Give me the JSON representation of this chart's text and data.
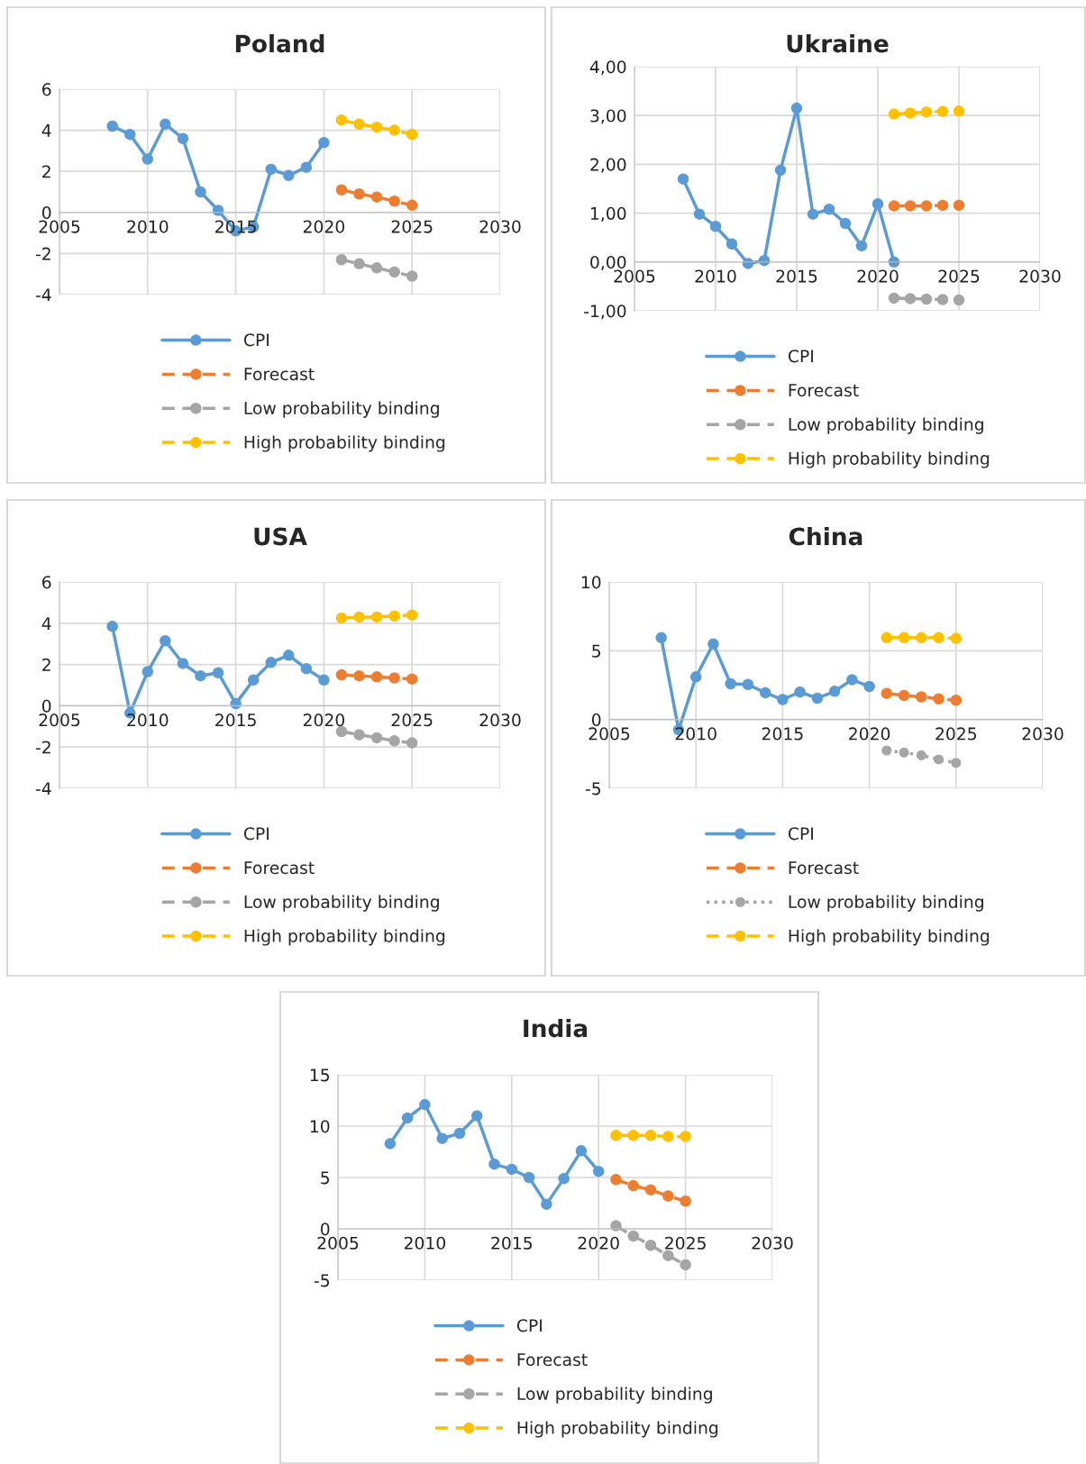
{
  "chart_data": [
    {
      "type": "line",
      "title": "Poland",
      "xlim": [
        2005,
        2030
      ],
      "xticks": [
        2005,
        2010,
        2015,
        2020,
        2025,
        2030
      ],
      "ylim": [
        -4,
        6
      ],
      "yticks": [
        -4,
        -2,
        0,
        2,
        4,
        6
      ],
      "grid": true,
      "legend": "bottom",
      "marker": "circle",
      "series": [
        {
          "name": "CPI",
          "color": "#5b9bd5",
          "line_style": "solid",
          "x": [
            2008,
            2009,
            2010,
            2011,
            2012,
            2013,
            2014,
            2015,
            2016,
            2017,
            2018,
            2019,
            2020
          ],
          "values": [
            4.2,
            3.8,
            2.6,
            4.3,
            3.6,
            1.0,
            0.1,
            -0.9,
            -0.7,
            2.1,
            1.8,
            2.2,
            3.4
          ]
        },
        {
          "name": "Forecast",
          "color": "#ed7d31",
          "line_style": "dashed",
          "x": [
            2021,
            2022,
            2023,
            2024,
            2025
          ],
          "values": [
            1.1,
            0.9,
            0.75,
            0.55,
            0.35
          ]
        },
        {
          "name": "Low probability binding",
          "color": "#a5a5a5",
          "line_style": "dashed",
          "x": [
            2021,
            2022,
            2023,
            2024,
            2025
          ],
          "values": [
            -2.3,
            -2.5,
            -2.7,
            -2.9,
            -3.1
          ]
        },
        {
          "name": "High probability binding",
          "color": "#ffc000",
          "line_style": "dashed",
          "x": [
            2021,
            2022,
            2023,
            2024,
            2025
          ],
          "values": [
            4.5,
            4.3,
            4.15,
            4.0,
            3.8
          ]
        }
      ]
    },
    {
      "type": "line",
      "title": "Ukraine",
      "xlim": [
        2005,
        2030
      ],
      "xticks": [
        2005,
        2010,
        2015,
        2020,
        2025,
        2030
      ],
      "ylim": [
        -1,
        4
      ],
      "yticks": [
        {
          "value": -1,
          "label": "-1,00"
        },
        {
          "value": 0,
          "label": "0,00"
        },
        {
          "value": 1,
          "label": "1,00"
        },
        {
          "value": 2,
          "label": "2,00"
        },
        {
          "value": 3,
          "label": "3,00"
        },
        {
          "value": 4,
          "label": "4,00"
        }
      ],
      "grid": true,
      "legend": "bottom",
      "marker": "circle",
      "series": [
        {
          "name": "CPI",
          "color": "#5b9bd5",
          "line_style": "solid",
          "x": [
            2008,
            2009,
            2010,
            2011,
            2012,
            2013,
            2014,
            2015,
            2016,
            2017,
            2018,
            2019,
            2020,
            2021
          ],
          "values": [
            1.7,
            0.98,
            0.73,
            0.37,
            -0.03,
            0.03,
            1.88,
            3.15,
            0.98,
            1.08,
            0.79,
            0.33,
            1.19,
            0.0
          ]
        },
        {
          "name": "Forecast",
          "color": "#ed7d31",
          "line_style": "dashed",
          "x": [
            2021,
            2022,
            2023,
            2024,
            2025
          ],
          "values": [
            1.15,
            1.15,
            1.15,
            1.16,
            1.16
          ]
        },
        {
          "name": "Low probability binding",
          "color": "#a5a5a5",
          "line_style": "dashed",
          "x": [
            2021,
            2022,
            2023,
            2024,
            2025
          ],
          "values": [
            -0.74,
            -0.75,
            -0.76,
            -0.77,
            -0.78
          ]
        },
        {
          "name": "High probability binding",
          "color": "#ffc000",
          "line_style": "dashed",
          "x": [
            2021,
            2022,
            2023,
            2024,
            2025
          ],
          "values": [
            3.03,
            3.05,
            3.07,
            3.08,
            3.09
          ]
        }
      ]
    },
    {
      "type": "line",
      "title": "USA",
      "xlim": [
        2005,
        2030
      ],
      "xticks": [
        2005,
        2010,
        2015,
        2020,
        2025,
        2030
      ],
      "ylim": [
        -4,
        6
      ],
      "yticks": [
        -4,
        -2,
        0,
        2,
        4,
        6
      ],
      "grid": true,
      "legend": "bottom",
      "marker": "circle",
      "series": [
        {
          "name": "CPI",
          "color": "#5b9bd5",
          "line_style": "solid",
          "x": [
            2008,
            2009,
            2010,
            2011,
            2012,
            2013,
            2014,
            2015,
            2016,
            2017,
            2018,
            2019,
            2020
          ],
          "values": [
            3.85,
            -0.35,
            1.65,
            3.15,
            2.05,
            1.45,
            1.6,
            0.1,
            1.25,
            2.1,
            2.45,
            1.8,
            1.25
          ]
        },
        {
          "name": "Forecast",
          "color": "#ed7d31",
          "line_style": "dashed",
          "x": [
            2021,
            2022,
            2023,
            2024,
            2025
          ],
          "values": [
            1.5,
            1.45,
            1.4,
            1.35,
            1.3
          ]
        },
        {
          "name": "Low probability binding",
          "color": "#a5a5a5",
          "line_style": "dashed",
          "x": [
            2021,
            2022,
            2023,
            2024,
            2025
          ],
          "values": [
            -1.25,
            -1.4,
            -1.55,
            -1.7,
            -1.8
          ]
        },
        {
          "name": "High probability binding",
          "color": "#ffc000",
          "line_style": "dashed",
          "x": [
            2021,
            2022,
            2023,
            2024,
            2025
          ],
          "values": [
            4.25,
            4.3,
            4.3,
            4.35,
            4.4
          ]
        }
      ]
    },
    {
      "type": "line",
      "title": "China",
      "xlim": [
        2005,
        2030
      ],
      "xticks": [
        2005,
        2010,
        2015,
        2020,
        2025,
        2030
      ],
      "ylim": [
        -5,
        10
      ],
      "yticks": [
        -5,
        0,
        5,
        10
      ],
      "grid": true,
      "legend": "bottom",
      "marker": "circle",
      "series": [
        {
          "name": "CPI",
          "color": "#5b9bd5",
          "line_style": "solid",
          "x": [
            2008,
            2009,
            2010,
            2011,
            2012,
            2013,
            2014,
            2015,
            2016,
            2017,
            2018,
            2019,
            2020
          ],
          "values": [
            5.95,
            -0.75,
            3.1,
            5.5,
            2.6,
            2.55,
            1.95,
            1.45,
            2.0,
            1.55,
            2.05,
            2.9,
            2.4
          ]
        },
        {
          "name": "Forecast",
          "color": "#ed7d31",
          "line_style": "dashed",
          "x": [
            2021,
            2022,
            2023,
            2024,
            2025
          ],
          "values": [
            1.9,
            1.75,
            1.65,
            1.5,
            1.4
          ]
        },
        {
          "name": "Low probability binding",
          "color": "#a5a5a5",
          "line_style": "dotted",
          "x": [
            2021,
            2022,
            2023,
            2024,
            2025
          ],
          "values": [
            -2.25,
            -2.4,
            -2.6,
            -2.9,
            -3.15
          ]
        },
        {
          "name": "High probability binding",
          "color": "#ffc000",
          "line_style": "dashed",
          "x": [
            2021,
            2022,
            2023,
            2024,
            2025
          ],
          "values": [
            5.95,
            5.95,
            5.95,
            5.95,
            5.9
          ]
        }
      ]
    },
    {
      "type": "line",
      "title": "India",
      "xlim": [
        2005,
        2030
      ],
      "xticks": [
        2005,
        2010,
        2015,
        2020,
        2025,
        2030
      ],
      "ylim": [
        -5,
        15
      ],
      "yticks": [
        -5,
        0,
        5,
        10,
        15
      ],
      "grid": true,
      "legend": "bottom",
      "marker": "circle",
      "series": [
        {
          "name": "CPI",
          "color": "#5b9bd5",
          "line_style": "solid",
          "x": [
            2008,
            2009,
            2010,
            2011,
            2012,
            2013,
            2014,
            2015,
            2016,
            2017,
            2018,
            2019,
            2020
          ],
          "values": [
            8.3,
            10.8,
            12.1,
            8.8,
            9.3,
            11.0,
            6.3,
            5.8,
            5.0,
            2.4,
            4.9,
            7.6,
            5.6
          ]
        },
        {
          "name": "Forecast",
          "color": "#ed7d31",
          "line_style": "dashed",
          "x": [
            2021,
            2022,
            2023,
            2024,
            2025
          ],
          "values": [
            4.8,
            4.2,
            3.8,
            3.2,
            2.7
          ]
        },
        {
          "name": "Low probability binding",
          "color": "#a5a5a5",
          "line_style": "dashed",
          "x": [
            2021,
            2022,
            2023,
            2024,
            2025
          ],
          "values": [
            0.3,
            -0.7,
            -1.6,
            -2.6,
            -3.5
          ]
        },
        {
          "name": "High probability binding",
          "color": "#ffc000",
          "line_style": "dashed",
          "x": [
            2021,
            2022,
            2023,
            2024,
            2025
          ],
          "values": [
            9.1,
            9.1,
            9.1,
            9.0,
            9.0
          ]
        }
      ]
    }
  ]
}
